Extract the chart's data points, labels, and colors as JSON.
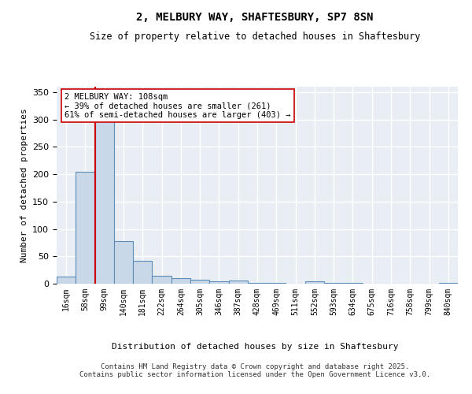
{
  "title1": "2, MELBURY WAY, SHAFTESBURY, SP7 8SN",
  "title2": "Size of property relative to detached houses in Shaftesbury",
  "xlabel": "Distribution of detached houses by size in Shaftesbury",
  "ylabel": "Number of detached properties",
  "bar_labels": [
    "16sqm",
    "58sqm",
    "99sqm",
    "140sqm",
    "181sqm",
    "222sqm",
    "264sqm",
    "305sqm",
    "346sqm",
    "387sqm",
    "428sqm",
    "469sqm",
    "511sqm",
    "552sqm",
    "593sqm",
    "634sqm",
    "675sqm",
    "716sqm",
    "758sqm",
    "799sqm",
    "840sqm"
  ],
  "bar_values": [
    13,
    205,
    335,
    78,
    42,
    14,
    10,
    7,
    5,
    6,
    2,
    2,
    0,
    4,
    1,
    1,
    0,
    0,
    0,
    0,
    2
  ],
  "bar_color": "#c8d8e8",
  "bar_edge_color": "#5b8db8",
  "property_line_x": 1.5,
  "property_line_color": "#cc0000",
  "annotation_text": "2 MELBURY WAY: 108sqm\n← 39% of detached houses are smaller (261)\n61% of semi-detached houses are larger (403) →",
  "annotation_box_color": "#ffffff",
  "annotation_box_edge": "#cc0000",
  "ylim": [
    0,
    360
  ],
  "yticks": [
    0,
    50,
    100,
    150,
    200,
    250,
    300,
    350
  ],
  "background_color": "#e8eef4",
  "grid_color": "#ffffff",
  "footer1": "Contains HM Land Registry data © Crown copyright and database right 2025.",
  "footer2": "Contains public sector information licensed under the Open Government Licence v3.0."
}
